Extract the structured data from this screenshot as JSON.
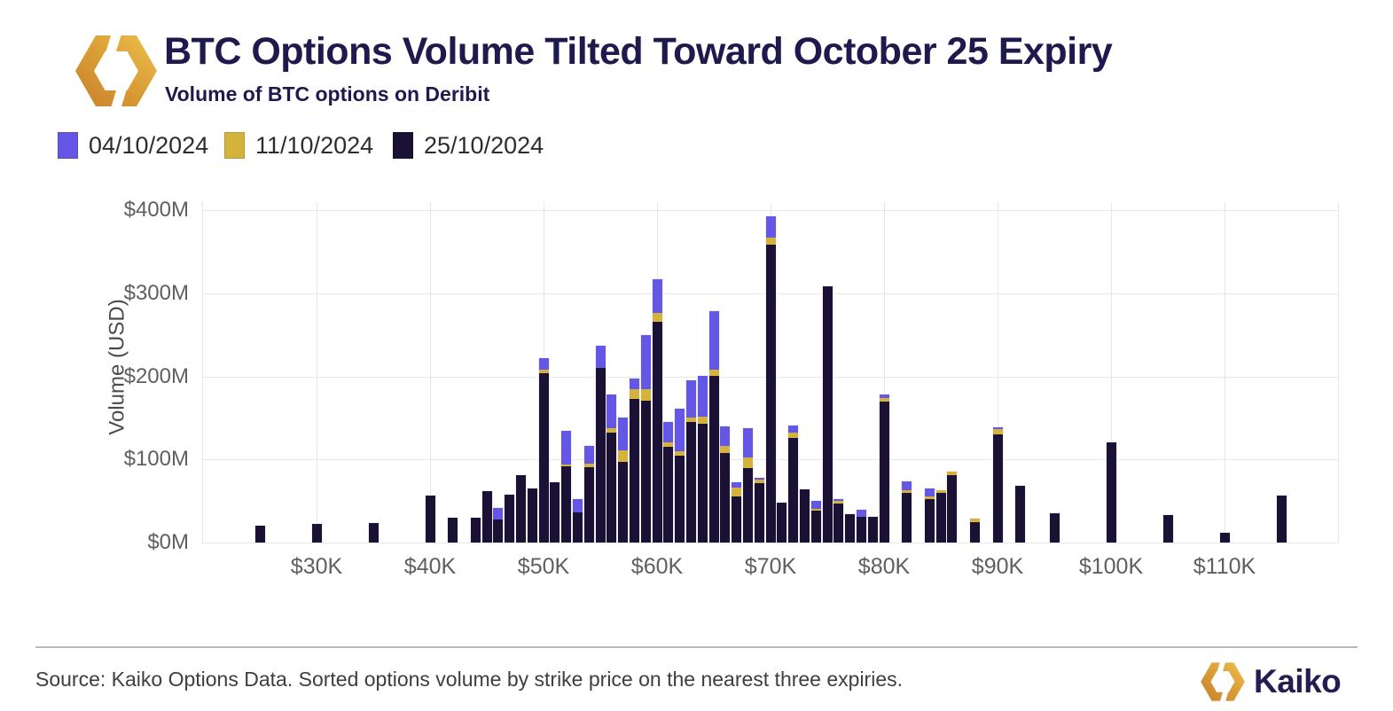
{
  "header": {
    "title": "BTC Options Volume Tilted Toward October 25 Expiry",
    "subtitle": "Volume of BTC options on Deribit"
  },
  "colors": {
    "purple_04_10": "#6457e6",
    "gold_11_10": "#d5b23c",
    "dark_25_10": "#1a1134",
    "title_navy": "#1f1a4e",
    "grid": "#e7e7e7",
    "axis_text": "#5f5f5f",
    "logo_gold_light": "#ecc24e",
    "logo_gold_dark": "#c8802b"
  },
  "chart_data": {
    "type": "bar",
    "stacked": true,
    "title": "BTC Options Volume Tilted Toward October 25 Expiry",
    "subtitle": "Volume of BTC options on Deribit",
    "ylabel": "Volume (USD)",
    "xlabel": "",
    "grid": true,
    "legend_position": "top",
    "values_in": "millions_usd",
    "ylim_musd": [
      0,
      425
    ],
    "y_tick_values_musd": [
      0,
      100,
      200,
      300,
      400
    ],
    "y_tick_labels": [
      "$0M",
      "$100M",
      "$200M",
      "$300M",
      "$400M"
    ],
    "x_tick_values_k": [
      30,
      40,
      50,
      60,
      70,
      80,
      90,
      100,
      110
    ],
    "x_tick_labels": [
      "$30K",
      "$40K",
      "$50K",
      "$60K",
      "$70K",
      "$80K",
      "$90K",
      "$100K",
      "$110K"
    ],
    "x_grid_values_k": [
      30,
      40,
      50,
      60,
      70,
      80,
      90,
      100,
      110,
      120
    ],
    "series_order_bottom_to_top": [
      "25/10/2024",
      "11/10/2024",
      "04/10/2024"
    ],
    "series": [
      {
        "name": "04/10/2024",
        "key": "p",
        "color": "#6457e6"
      },
      {
        "name": "11/10/2024",
        "key": "g",
        "color": "#d5b23c"
      },
      {
        "name": "25/10/2024",
        "key": "d",
        "color": "#1a1134"
      }
    ],
    "bars": [
      {
        "k": 25,
        "d": 20,
        "g": 0,
        "p": 0
      },
      {
        "k": 30,
        "d": 22,
        "g": 0,
        "p": 0
      },
      {
        "k": 35,
        "d": 23,
        "g": 0,
        "p": 0
      },
      {
        "k": 40,
        "d": 57,
        "g": 0,
        "p": 0
      },
      {
        "k": 42,
        "d": 30,
        "g": 0,
        "p": 0
      },
      {
        "k": 44,
        "d": 30,
        "g": 0,
        "p": 0
      },
      {
        "k": 45,
        "d": 62,
        "g": 0,
        "p": 0
      },
      {
        "k": 46,
        "d": 28,
        "g": 0,
        "p": 14
      },
      {
        "k": 47,
        "d": 58,
        "g": 0,
        "p": 0
      },
      {
        "k": 48,
        "d": 81,
        "g": 0,
        "p": 0
      },
      {
        "k": 49,
        "d": 65,
        "g": 0,
        "p": 0
      },
      {
        "k": 50,
        "d": 204,
        "g": 4,
        "p": 14
      },
      {
        "k": 51,
        "d": 73,
        "g": 0,
        "p": 0
      },
      {
        "k": 52,
        "d": 92,
        "g": 2,
        "p": 40
      },
      {
        "k": 53,
        "d": 36,
        "g": 0,
        "p": 16
      },
      {
        "k": 54,
        "d": 91,
        "g": 4,
        "p": 21
      },
      {
        "k": 55,
        "d": 210,
        "g": 0,
        "p": 27
      },
      {
        "k": 56,
        "d": 132,
        "g": 5,
        "p": 41
      },
      {
        "k": 57,
        "d": 97,
        "g": 14,
        "p": 39
      },
      {
        "k": 58,
        "d": 173,
        "g": 12,
        "p": 13
      },
      {
        "k": 59,
        "d": 171,
        "g": 14,
        "p": 65
      },
      {
        "k": 60,
        "d": 266,
        "g": 11,
        "p": 40
      },
      {
        "k": 61,
        "d": 115,
        "g": 5,
        "p": 25
      },
      {
        "k": 62,
        "d": 105,
        "g": 5,
        "p": 51
      },
      {
        "k": 63,
        "d": 145,
        "g": 5,
        "p": 45
      },
      {
        "k": 64,
        "d": 143,
        "g": 9,
        "p": 49
      },
      {
        "k": 65,
        "d": 201,
        "g": 7,
        "p": 70
      },
      {
        "k": 66,
        "d": 108,
        "g": 8,
        "p": 23
      },
      {
        "k": 67,
        "d": 55,
        "g": 11,
        "p": 6
      },
      {
        "k": 68,
        "d": 90,
        "g": 13,
        "p": 35
      },
      {
        "k": 69,
        "d": 71,
        "g": 4,
        "p": 2
      },
      {
        "k": 70,
        "d": 358,
        "g": 8,
        "p": 26
      },
      {
        "k": 71,
        "d": 48,
        "g": 0,
        "p": 0
      },
      {
        "k": 72,
        "d": 126,
        "g": 6,
        "p": 8
      },
      {
        "k": 73,
        "d": 64,
        "g": 0,
        "p": 0
      },
      {
        "k": 74,
        "d": 38,
        "g": 2,
        "p": 10
      },
      {
        "k": 75,
        "d": 308,
        "g": 0,
        "p": 0
      },
      {
        "k": 76,
        "d": 47,
        "g": 3,
        "p": 2
      },
      {
        "k": 77,
        "d": 34,
        "g": 0,
        "p": 0
      },
      {
        "k": 78,
        "d": 31,
        "g": 0,
        "p": 8
      },
      {
        "k": 79,
        "d": 31,
        "g": 0,
        "p": 0
      },
      {
        "k": 80,
        "d": 170,
        "g": 4,
        "p": 4
      },
      {
        "k": 82,
        "d": 60,
        "g": 3,
        "p": 11
      },
      {
        "k": 84,
        "d": 52,
        "g": 3,
        "p": 10
      },
      {
        "k": 85,
        "d": 60,
        "g": 3,
        "p": 0
      },
      {
        "k": 86,
        "d": 81,
        "g": 4,
        "p": 0
      },
      {
        "k": 88,
        "d": 24,
        "g": 4,
        "p": 0
      },
      {
        "k": 90,
        "d": 130,
        "g": 6,
        "p": 2
      },
      {
        "k": 92,
        "d": 68,
        "g": 0,
        "p": 0
      },
      {
        "k": 95,
        "d": 35,
        "g": 0,
        "p": 0
      },
      {
        "k": 100,
        "d": 121,
        "g": 0,
        "p": 0
      },
      {
        "k": 105,
        "d": 33,
        "g": 0,
        "p": 0
      },
      {
        "k": 110,
        "d": 12,
        "g": 0,
        "p": 0
      },
      {
        "k": 115,
        "d": 57,
        "g": 0,
        "p": 0
      }
    ]
  },
  "footer": {
    "source": "Source: Kaiko Options Data. Sorted options volume by strike price on the nearest three expiries.",
    "brand": "Kaiko"
  }
}
